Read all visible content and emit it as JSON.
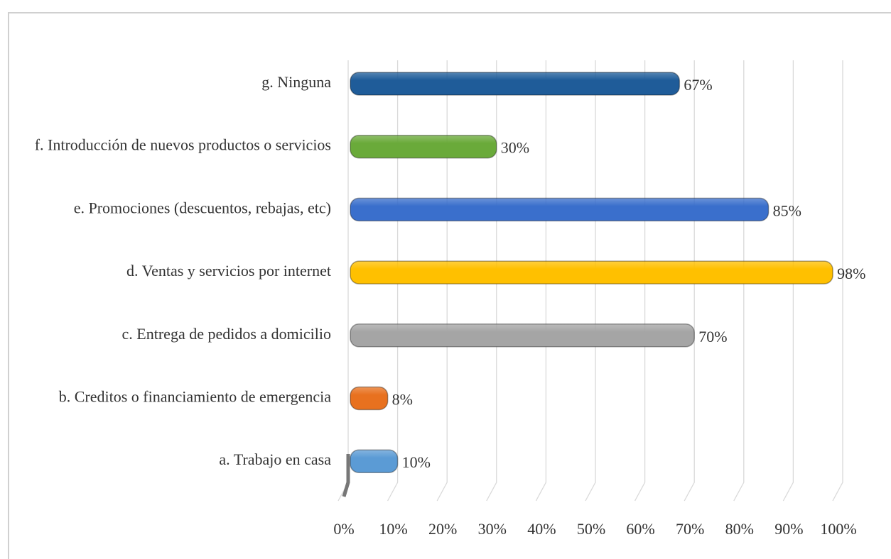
{
  "chart_data": {
    "type": "barh",
    "categories": [
      "a. Trabajo en casa",
      "b. Creditos o financiamiento de emergencia",
      "c. Entrega de pedidos a domicilio",
      "d. Ventas y servicios por internet",
      "e. Promociones (descuentos, rebajas, etc)",
      "f. Introducción de nuevos productos o servicios",
      "g. Ninguna"
    ],
    "values": [
      10,
      8,
      70,
      98,
      85,
      30,
      67
    ],
    "value_labels": [
      "10%",
      "8%",
      "70%",
      "98%",
      "85%",
      "30%",
      "67%"
    ],
    "colors": [
      "#5b9bd5",
      "#e8711f",
      "#a5a5a5",
      "#ffc000",
      "#3a6fcc",
      "#6aaa3a",
      "#1f5c99"
    ],
    "xlim": [
      0,
      100
    ],
    "xticks": [
      {
        "value": 0,
        "label": "0%"
      },
      {
        "value": 10,
        "label": "10%"
      },
      {
        "value": 20,
        "label": "20%"
      },
      {
        "value": 30,
        "label": "30%"
      },
      {
        "value": 40,
        "label": "40%"
      },
      {
        "value": 50,
        "label": "50%"
      },
      {
        "value": 60,
        "label": "60%"
      },
      {
        "value": 70,
        "label": "70%"
      },
      {
        "value": 80,
        "label": "80%"
      },
      {
        "value": 90,
        "label": "90%"
      },
      {
        "value": 100,
        "label": "100%"
      }
    ],
    "grid": true
  }
}
